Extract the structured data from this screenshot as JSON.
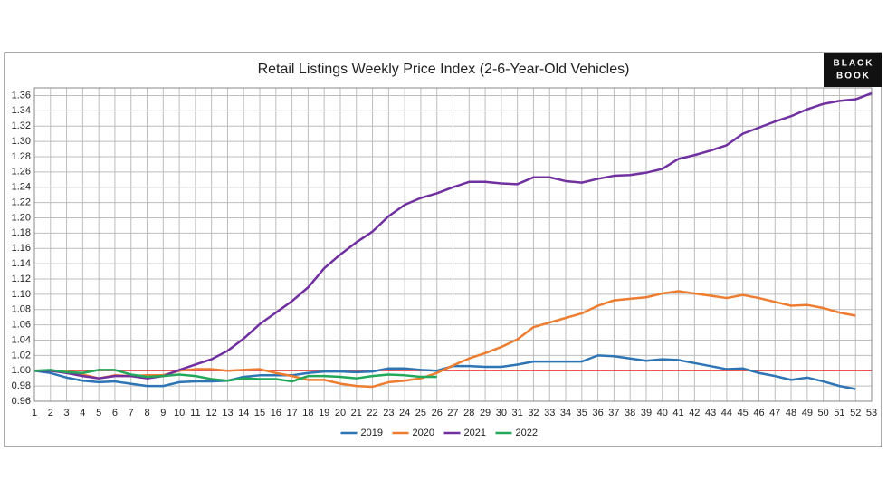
{
  "logo": [
    "BLACK",
    "BOOK"
  ],
  "chart_data": {
    "type": "line",
    "title": "Retail Listings Weekly Price Index (2-6-Year-Old Vehicles)",
    "x": [
      1,
      2,
      3,
      4,
      5,
      6,
      7,
      8,
      9,
      10,
      11,
      12,
      13,
      14,
      15,
      16,
      17,
      18,
      19,
      20,
      21,
      22,
      23,
      24,
      25,
      26,
      27,
      28,
      29,
      30,
      31,
      32,
      33,
      34,
      35,
      36,
      37,
      38,
      39,
      40,
      41,
      42,
      43,
      44,
      45,
      46,
      47,
      48,
      49,
      50,
      51,
      52,
      53
    ],
    "xlim": [
      1,
      53
    ],
    "xticks": [
      1,
      2,
      3,
      4,
      5,
      6,
      7,
      8,
      9,
      10,
      11,
      12,
      13,
      14,
      15,
      16,
      17,
      18,
      19,
      20,
      21,
      22,
      23,
      24,
      25,
      26,
      27,
      28,
      29,
      30,
      31,
      32,
      33,
      34,
      35,
      36,
      37,
      38,
      39,
      40,
      41,
      42,
      43,
      44,
      45,
      46,
      47,
      48,
      49,
      50,
      51,
      52,
      53
    ],
    "ylim": [
      0.96,
      1.37
    ],
    "yticks": [
      {
        "value": 0.96,
        "label": "0.96"
      },
      {
        "value": 0.98,
        "label": "0.98"
      },
      {
        "value": 1.0,
        "label": "1.00"
      },
      {
        "value": 1.02,
        "label": "1.02"
      },
      {
        "value": 1.04,
        "label": "1.04"
      },
      {
        "value": 1.06,
        "label": "1.06"
      },
      {
        "value": 1.08,
        "label": "1.08"
      },
      {
        "value": 1.1,
        "label": "1.10"
      },
      {
        "value": 1.12,
        "label": "1.12"
      },
      {
        "value": 1.14,
        "label": "1.14"
      },
      {
        "value": 1.16,
        "label": "1.16"
      },
      {
        "value": 1.18,
        "label": "1.18"
      },
      {
        "value": 1.2,
        "label": "1.20"
      },
      {
        "value": 1.22,
        "label": "1.22"
      },
      {
        "value": 1.24,
        "label": "1.24"
      },
      {
        "value": 1.26,
        "label": "1.26"
      },
      {
        "value": 1.28,
        "label": "1.28"
      },
      {
        "value": 1.3,
        "label": "1.30"
      },
      {
        "value": 1.32,
        "label": "1.32"
      },
      {
        "value": 1.34,
        "label": "1.34"
      },
      {
        "value": 1.36,
        "label": "1.36"
      }
    ],
    "grid": true,
    "reference_line": {
      "value": 1.0,
      "color": "#e8453c"
    },
    "legend": "bottom",
    "series": [
      {
        "name": "2019",
        "color": "#2e75b6",
        "values": [
          1.0,
          0.997,
          0.991,
          0.987,
          0.985,
          0.986,
          0.983,
          0.98,
          0.98,
          0.985,
          0.986,
          0.986,
          0.987,
          0.992,
          0.994,
          0.994,
          0.994,
          0.997,
          0.999,
          0.999,
          0.998,
          0.999,
          1.003,
          1.003,
          1.001,
          1.0,
          1.006,
          1.006,
          1.005,
          1.005,
          1.008,
          1.012,
          1.012,
          1.012,
          1.012,
          1.02,
          1.019,
          1.016,
          1.013,
          1.015,
          1.014,
          1.01,
          1.006,
          1.002,
          1.003,
          0.997,
          0.993,
          0.988,
          0.991,
          0.986,
          0.98,
          0.976,
          null
        ]
      },
      {
        "name": "2020",
        "color": "#ed7d31",
        "values": [
          1.0,
          1.0,
          0.999,
          0.995,
          0.99,
          0.994,
          0.993,
          0.994,
          0.994,
          1.0,
          1.002,
          1.002,
          1.0,
          1.001,
          1.002,
          0.997,
          0.993,
          0.988,
          0.988,
          0.983,
          0.98,
          0.979,
          0.985,
          0.987,
          0.99,
          0.997,
          1.007,
          1.016,
          1.023,
          1.031,
          1.041,
          1.057,
          1.063,
          1.069,
          1.075,
          1.085,
          1.092,
          1.094,
          1.096,
          1.101,
          1.104,
          1.101,
          1.098,
          1.095,
          1.099,
          1.095,
          1.09,
          1.085,
          1.086,
          1.082,
          1.076,
          1.072,
          null
        ]
      },
      {
        "name": "2021",
        "color": "#7030a0",
        "values": [
          1.0,
          1.0,
          0.997,
          0.993,
          0.99,
          0.993,
          0.993,
          0.99,
          0.993,
          1.001,
          1.008,
          1.015,
          1.026,
          1.042,
          1.061,
          1.076,
          1.091,
          1.109,
          1.134,
          1.152,
          1.168,
          1.182,
          1.202,
          1.217,
          1.226,
          1.232,
          1.24,
          1.247,
          1.247,
          1.245,
          1.244,
          1.253,
          1.253,
          1.248,
          1.246,
          1.251,
          1.255,
          1.256,
          1.259,
          1.264,
          1.277,
          1.282,
          1.288,
          1.295,
          1.31,
          1.318,
          1.326,
          1.333,
          1.342,
          1.349,
          1.353,
          1.355,
          1.363
        ]
      },
      {
        "name": "2022",
        "color": "#22a85a",
        "values": [
          1.0,
          1.001,
          0.998,
          0.997,
          1.001,
          1.001,
          0.995,
          0.992,
          0.993,
          0.995,
          0.993,
          0.989,
          0.987,
          0.99,
          0.989,
          0.989,
          0.986,
          0.993,
          0.993,
          0.992,
          0.99,
          0.993,
          0.995,
          0.994,
          0.992,
          0.992,
          null,
          null,
          null,
          null,
          null,
          null,
          null,
          null,
          null,
          null,
          null,
          null,
          null,
          null,
          null,
          null,
          null,
          null,
          null,
          null,
          null,
          null,
          null,
          null,
          null,
          null,
          null
        ]
      }
    ]
  }
}
